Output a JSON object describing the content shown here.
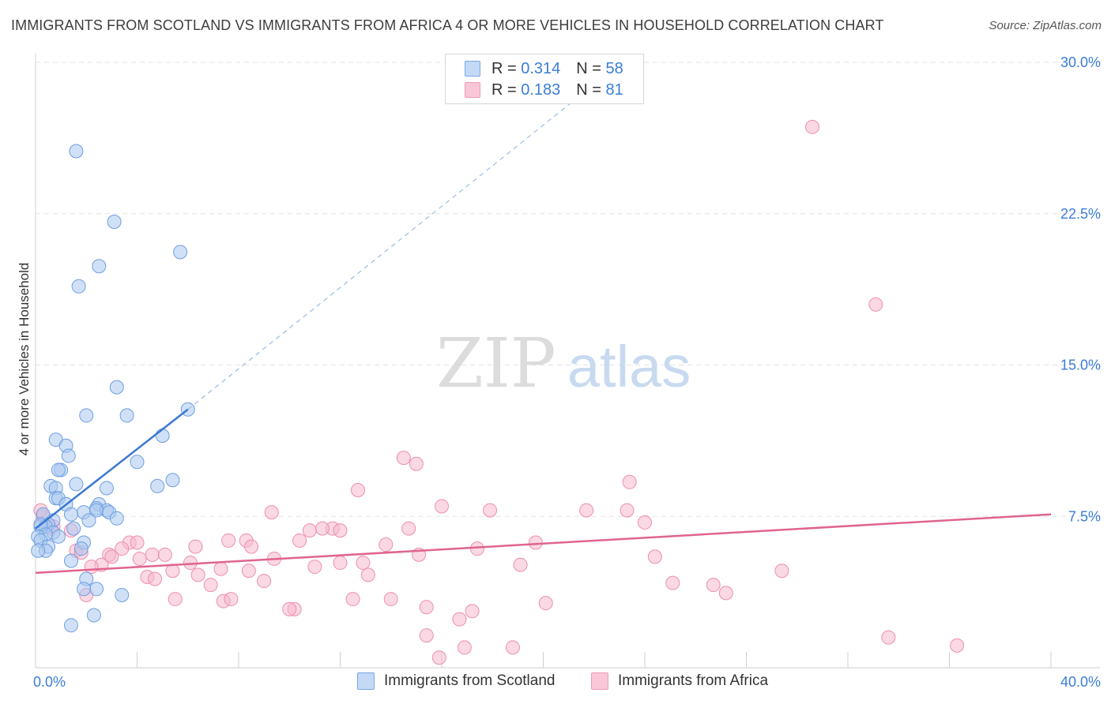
{
  "title": "IMMIGRANTS FROM SCOTLAND VS IMMIGRANTS FROM AFRICA 4 OR MORE VEHICLES IN HOUSEHOLD CORRELATION CHART",
  "source": "Source: ZipAtlas.com",
  "watermark": {
    "zip": "ZIP",
    "atlas": "atlas"
  },
  "legend": {
    "scotland": {
      "r_label": "R =",
      "r_value": "0.314",
      "n_label": "N =",
      "n_value": "58"
    },
    "africa": {
      "r_label": "R =",
      "r_value": "0.183",
      "n_label": "N =",
      "n_value": "81"
    }
  },
  "bottom_legend": {
    "scotland": "Immigrants from Scotland",
    "africa": "Immigrants from Africa"
  },
  "colors": {
    "scotland_fill": "#a9c8f0",
    "scotland_stroke": "#6f9ee0",
    "scotland_line": "#3a78d4",
    "africa_fill": "#f6b8cd",
    "africa_stroke": "#ec8fae",
    "africa_line": "#e0648f",
    "axis_label": "#3b7dd8",
    "grid": "#e3e3e3"
  },
  "chart_data": {
    "type": "scatter",
    "title": "IMMIGRANTS FROM SCOTLAND VS IMMIGRANTS FROM AFRICA 4 OR MORE VEHICLES IN HOUSEHOLD CORRELATION CHART",
    "xlabel": "",
    "ylabel": "4 or more Vehicles in Household",
    "xlim": [
      0,
      40
    ],
    "ylim": [
      0,
      30
    ],
    "x_tick_labels": [
      {
        "value": 0,
        "label": "0.0%"
      },
      {
        "value": 40,
        "label": "40.0%"
      }
    ],
    "y_tick_labels": [
      {
        "value": 7.5,
        "label": "7.5%"
      },
      {
        "value": 15,
        "label": "15.0%"
      },
      {
        "value": 22.5,
        "label": "22.5%"
      },
      {
        "value": 30,
        "label": "30.0%"
      }
    ],
    "series": [
      {
        "name": "Immigrants from Scotland",
        "r": 0.314,
        "n": 58,
        "trend": {
          "x": [
            0,
            6
          ],
          "y": [
            6.9,
            12.8
          ],
          "dashed_to": {
            "x": 22,
            "y": 28.9
          }
        },
        "points": [
          [
            1.6,
            25.6
          ],
          [
            3.1,
            22.1
          ],
          [
            5.7,
            20.6
          ],
          [
            2.5,
            19.9
          ],
          [
            1.7,
            18.9
          ],
          [
            3.2,
            13.9
          ],
          [
            6.0,
            12.8
          ],
          [
            2.0,
            12.5
          ],
          [
            3.6,
            12.5
          ],
          [
            5.0,
            11.5
          ],
          [
            0.8,
            11.3
          ],
          [
            1.2,
            11.0
          ],
          [
            1.3,
            10.5
          ],
          [
            4.0,
            10.2
          ],
          [
            1.0,
            9.8
          ],
          [
            0.9,
            9.8
          ],
          [
            5.4,
            9.3
          ],
          [
            1.6,
            9.1
          ],
          [
            4.8,
            9.0
          ],
          [
            0.6,
            9.0
          ],
          [
            0.8,
            8.9
          ],
          [
            2.8,
            8.9
          ],
          [
            0.8,
            8.4
          ],
          [
            0.9,
            8.4
          ],
          [
            1.2,
            8.1
          ],
          [
            2.5,
            8.1
          ],
          [
            2.4,
            7.9
          ],
          [
            2.8,
            7.8
          ],
          [
            1.9,
            7.7
          ],
          [
            2.4,
            7.8
          ],
          [
            1.4,
            7.6
          ],
          [
            2.9,
            7.7
          ],
          [
            0.3,
            7.6
          ],
          [
            3.2,
            7.4
          ],
          [
            2.1,
            7.3
          ],
          [
            0.7,
            7.3
          ],
          [
            0.5,
            7.1
          ],
          [
            0.2,
            7.0
          ],
          [
            0.4,
            7.0
          ],
          [
            0.2,
            7.1
          ],
          [
            1.5,
            6.9
          ],
          [
            0.7,
            6.7
          ],
          [
            0.9,
            6.5
          ],
          [
            0.4,
            6.6
          ],
          [
            0.1,
            6.5
          ],
          [
            0.2,
            6.3
          ],
          [
            1.9,
            6.2
          ],
          [
            0.5,
            6.0
          ],
          [
            1.8,
            5.9
          ],
          [
            0.4,
            5.8
          ],
          [
            0.1,
            5.8
          ],
          [
            1.4,
            5.3
          ],
          [
            2.0,
            4.4
          ],
          [
            3.4,
            3.6
          ],
          [
            2.4,
            3.9
          ],
          [
            1.9,
            3.9
          ],
          [
            2.3,
            2.6
          ],
          [
            1.4,
            2.1
          ]
        ]
      },
      {
        "name": "Immigrants from Africa",
        "r": 0.183,
        "n": 81,
        "trend": {
          "x": [
            0,
            40
          ],
          "y": [
            4.7,
            7.6
          ]
        },
        "points": [
          [
            30.6,
            26.8
          ],
          [
            33.1,
            18.0
          ],
          [
            14.5,
            10.4
          ],
          [
            15.0,
            10.1
          ],
          [
            23.4,
            9.2
          ],
          [
            12.7,
            8.8
          ],
          [
            16.0,
            8.0
          ],
          [
            17.9,
            7.8
          ],
          [
            21.7,
            7.8
          ],
          [
            23.3,
            7.8
          ],
          [
            9.3,
            7.7
          ],
          [
            24.0,
            7.2
          ],
          [
            11.7,
            6.9
          ],
          [
            14.7,
            6.9
          ],
          [
            10.8,
            6.8
          ],
          [
            12.0,
            6.8
          ],
          [
            11.3,
            6.9
          ],
          [
            8.3,
            6.3
          ],
          [
            6.3,
            6.0
          ],
          [
            2.9,
            5.6
          ],
          [
            4.6,
            5.6
          ],
          [
            6.1,
            5.2
          ],
          [
            8.5,
            6.0
          ],
          [
            7.6,
            6.3
          ],
          [
            10.4,
            6.3
          ],
          [
            17.4,
            5.9
          ],
          [
            19.7,
            6.2
          ],
          [
            13.8,
            6.1
          ],
          [
            3.7,
            6.2
          ],
          [
            3.4,
            5.9
          ],
          [
            5.1,
            5.6
          ],
          [
            2.6,
            5.1
          ],
          [
            3.0,
            5.5
          ],
          [
            4.1,
            5.4
          ],
          [
            4.4,
            4.5
          ],
          [
            6.4,
            4.6
          ],
          [
            5.4,
            4.8
          ],
          [
            7.3,
            4.9
          ],
          [
            8.4,
            4.8
          ],
          [
            9.4,
            5.4
          ],
          [
            11.0,
            5.0
          ],
          [
            12.0,
            5.2
          ],
          [
            12.9,
            5.2
          ],
          [
            13.1,
            4.6
          ],
          [
            15.1,
            5.6
          ],
          [
            2.2,
            5.0
          ],
          [
            2.0,
            3.6
          ],
          [
            1.6,
            5.8
          ],
          [
            1.8,
            5.7
          ],
          [
            0.6,
            6.9
          ],
          [
            0.7,
            7.0
          ],
          [
            0.3,
            7.5
          ],
          [
            0.2,
            7.8
          ],
          [
            1.4,
            6.8
          ],
          [
            4.7,
            4.4
          ],
          [
            5.5,
            3.4
          ],
          [
            6.9,
            4.1
          ],
          [
            9.0,
            4.3
          ],
          [
            7.4,
            3.3
          ],
          [
            7.7,
            3.4
          ],
          [
            10.2,
            2.9
          ],
          [
            10.0,
            2.9
          ],
          [
            12.5,
            3.4
          ],
          [
            14.0,
            3.4
          ],
          [
            15.4,
            3.0
          ],
          [
            17.2,
            2.8
          ],
          [
            16.7,
            2.4
          ],
          [
            20.1,
            3.2
          ],
          [
            19.1,
            5.1
          ],
          [
            24.4,
            5.5
          ],
          [
            25.1,
            4.2
          ],
          [
            26.7,
            4.1
          ],
          [
            27.2,
            3.7
          ],
          [
            29.4,
            4.8
          ],
          [
            33.6,
            1.5
          ],
          [
            36.3,
            1.1
          ],
          [
            15.4,
            1.6
          ],
          [
            15.9,
            0.5
          ],
          [
            16.9,
            1.0
          ],
          [
            18.8,
            1.0
          ],
          [
            4.0,
            6.2
          ]
        ]
      }
    ]
  }
}
